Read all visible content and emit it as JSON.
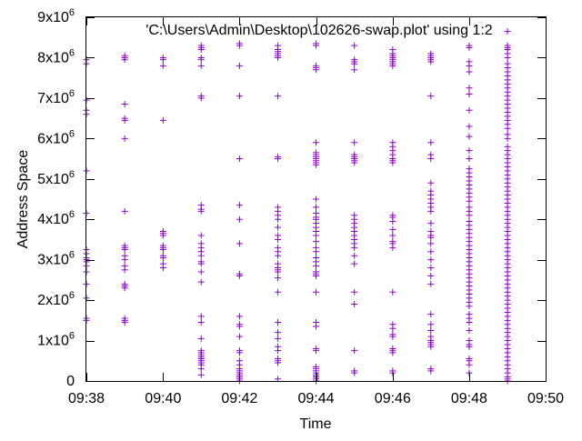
{
  "chart_data": {
    "type": "scatter",
    "title": "'C:\\Users\\Admin\\Desktop\\102626-swap.plot' using 1:2",
    "xlabel": "Time",
    "ylabel": "Address Space",
    "marker": "+",
    "color": "#9400d3",
    "xlim": [
      9.6333,
      9.8333
    ],
    "ylim": [
      0,
      9000000
    ],
    "x_ticks": [
      {
        "value": 9.6333,
        "label": "09:38"
      },
      {
        "value": 9.6667,
        "label": "09:40"
      },
      {
        "value": 9.7,
        "label": "09:42"
      },
      {
        "value": 9.7333,
        "label": "09:44"
      },
      {
        "value": 9.7667,
        "label": "09:46"
      },
      {
        "value": 9.8,
        "label": "09:48"
      },
      {
        "value": 9.8333,
        "label": "09:50"
      }
    ],
    "y_ticks": [
      {
        "value": 0,
        "mant": "0",
        "exp": ""
      },
      {
        "value": 1000000,
        "mant": "1x10",
        "exp": "6"
      },
      {
        "value": 2000000,
        "mant": "2x10",
        "exp": "6"
      },
      {
        "value": 3000000,
        "mant": "3x10",
        "exp": "6"
      },
      {
        "value": 4000000,
        "mant": "4x10",
        "exp": "6"
      },
      {
        "value": 5000000,
        "mant": "5x10",
        "exp": "6"
      },
      {
        "value": 6000000,
        "mant": "6x10",
        "exp": "6"
      },
      {
        "value": 7000000,
        "mant": "7x10",
        "exp": "6"
      },
      {
        "value": 8000000,
        "mant": "8x10",
        "exp": "6"
      },
      {
        "value": 9000000,
        "mant": "9x10",
        "exp": "6"
      }
    ],
    "series": [
      {
        "x": 9.6333,
        "y": [
          7950000,
          7850000,
          6950000,
          6700000,
          6600000,
          5200000,
          4150000,
          3250000,
          3150000,
          3050000,
          3000000,
          2950000,
          2850000,
          2700000,
          2400000,
          2050000,
          1550000,
          1500000
        ]
      },
      {
        "x": 9.65,
        "y": [
          8050000,
          8000000,
          7950000,
          6850000,
          6500000,
          6450000,
          6000000,
          4200000,
          3350000,
          3300000,
          3250000,
          3100000,
          3000000,
          2850000,
          2750000,
          2400000,
          2350000,
          2300000,
          1550000,
          1500000,
          1450000
        ]
      },
      {
        "x": 9.6667,
        "y": [
          8000000,
          7950000,
          7800000,
          6450000,
          3700000,
          3650000,
          3600000,
          3350000,
          3300000,
          3250000,
          3100000,
          3050000,
          2900000,
          2800000
        ]
      },
      {
        "x": 9.6833,
        "y": [
          8300000,
          8250000,
          8200000,
          8000000,
          7950000,
          7800000,
          7050000,
          7000000,
          4350000,
          4250000,
          4200000,
          3600000,
          3400000,
          3300000,
          3200000,
          3100000,
          2950000,
          2900000,
          2700000,
          2450000,
          1600000,
          1450000,
          1050000,
          750000,
          700000,
          650000,
          600000,
          550000,
          500000,
          450000,
          400000,
          300000,
          150000
        ]
      },
      {
        "x": 9.7,
        "y": [
          8350000,
          8300000,
          7800000,
          7050000,
          5500000,
          4350000,
          4000000,
          3400000,
          2650000,
          2600000,
          1600000,
          1400000,
          1350000,
          1100000,
          750000,
          700000,
          500000,
          400000,
          300000,
          250000,
          200000,
          150000,
          100000,
          50000,
          0
        ]
      },
      {
        "x": 9.7167,
        "y": [
          8300000,
          8200000,
          8150000,
          8100000,
          8050000,
          8000000,
          7050000,
          5550000,
          5500000,
          4300000,
          4200000,
          4100000,
          4000000,
          3800000,
          3600000,
          3500000,
          3300000,
          3200000,
          3100000,
          2900000,
          2800000,
          2750000,
          2700000,
          2550000,
          2200000,
          1450000,
          1200000,
          1050000,
          850000,
          750000,
          550000,
          500000,
          450000,
          50000
        ]
      },
      {
        "x": 9.7333,
        "y": [
          8350000,
          8300000,
          7800000,
          7750000,
          7700000,
          5900000,
          5650000,
          5600000,
          5550000,
          5500000,
          5450000,
          5400000,
          5350000,
          4500000,
          4300000,
          4150000,
          4050000,
          4000000,
          3900000,
          3800000,
          3700000,
          3600000,
          3450000,
          3300000,
          3200000,
          3050000,
          2950000,
          2850000,
          2700000,
          2650000,
          2600000,
          2200000,
          1450000,
          1350000,
          800000,
          750000,
          350000,
          300000,
          250000,
          200000,
          150000,
          100000,
          50000,
          0
        ]
      },
      {
        "x": 9.75,
        "y": [
          8300000,
          7950000,
          7900000,
          7850000,
          7700000,
          5900000,
          5600000,
          5550000,
          5500000,
          5450000,
          5400000,
          4100000,
          4000000,
          3900000,
          3800000,
          3700000,
          3600000,
          3500000,
          3400000,
          3300000,
          3100000,
          2900000,
          2200000,
          1900000,
          750000,
          250000,
          200000
        ]
      },
      {
        "x": 9.7667,
        "y": [
          8200000,
          8100000,
          8050000,
          8000000,
          7950000,
          7900000,
          7850000,
          7800000,
          5900000,
          5800000,
          5700000,
          5600000,
          5500000,
          5450000,
          5400000,
          4100000,
          4050000,
          3950000,
          3750000,
          3600000,
          3450000,
          3400000,
          3300000,
          2200000,
          1400000,
          1300000,
          1150000,
          1100000,
          800000,
          750000,
          700000,
          250000,
          200000
        ]
      },
      {
        "x": 9.7833,
        "y": [
          8100000,
          8050000,
          8000000,
          7950000,
          7900000,
          7050000,
          5900000,
          5600000,
          5500000,
          4900000,
          4700000,
          4600000,
          4500000,
          4400000,
          4300000,
          4200000,
          3900000,
          3700000,
          3600000,
          3550000,
          3400000,
          3200000,
          3000000,
          2800000,
          2600000,
          2400000,
          1650000,
          1400000,
          1250000,
          1100000,
          1000000,
          950000,
          900000,
          850000,
          300000,
          250000
        ]
      },
      {
        "x": 9.8,
        "y": [
          8300000,
          8250000,
          7900000,
          7800000,
          7650000,
          7250000,
          7100000,
          6700000,
          6300000,
          6050000,
          5700000,
          5500000,
          5250000,
          5150000,
          5050000,
          4950000,
          4850000,
          4750000,
          4650000,
          4550000,
          4450000,
          4300000,
          4200000,
          4100000,
          3950000,
          3850000,
          3750000,
          3650000,
          3550000,
          3450000,
          3350000,
          3250000,
          3150000,
          3050000,
          2950000,
          2850000,
          2750000,
          2650000,
          2550000,
          2450000,
          2350000,
          2250000,
          2150000,
          2050000,
          1950000,
          1850000,
          1650000,
          1550000,
          1450000,
          1250000,
          1000000,
          900000,
          850000,
          550000,
          500000,
          400000,
          200000
        ]
      },
      {
        "x": 9.8167,
        "y": [
          8650000,
          8300000,
          8250000,
          8200000,
          8100000,
          8000000,
          7850000,
          7750000,
          7650000,
          7550000,
          7450000,
          7350000,
          7250000,
          7150000,
          7050000,
          6950000,
          6850000,
          6750000,
          6650000,
          6550000,
          6450000,
          6350000,
          6250000,
          6100000,
          6000000,
          5800000,
          5700000,
          5600000,
          5500000,
          5400000,
          5300000,
          5200000,
          5100000,
          5000000,
          4900000,
          4800000,
          4700000,
          4600000,
          4500000,
          4400000,
          4300000,
          4200000,
          4100000,
          4000000,
          3900000,
          3800000,
          3700000,
          3600000,
          3500000,
          3400000,
          3300000,
          3200000,
          3100000,
          3000000,
          2900000,
          2800000,
          2700000,
          2600000,
          2500000,
          2400000,
          2300000,
          2200000,
          2100000,
          2000000,
          1900000,
          1800000,
          1700000,
          1600000,
          1500000,
          1400000,
          1300000,
          1200000,
          1100000,
          1000000,
          900000,
          800000,
          700000,
          600000,
          500000,
          400000,
          300000,
          200000,
          100000,
          50000,
          0
        ]
      }
    ]
  }
}
